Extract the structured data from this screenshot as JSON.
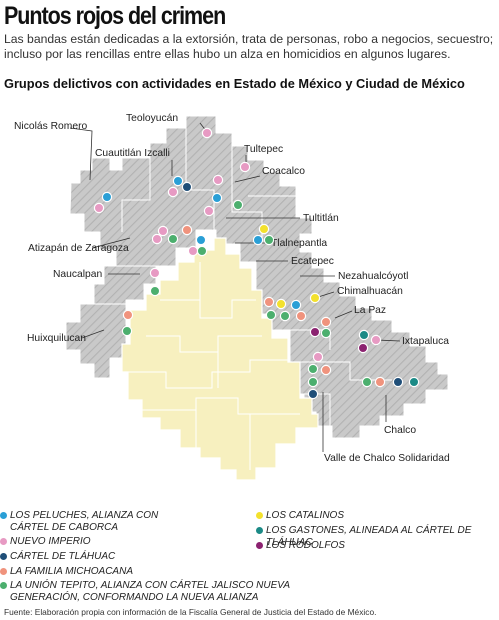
{
  "title": "Puntos rojos del crimen",
  "intro": "Las bandas están dedicadas a la extorsión, trata de personas, robo a negocios, secuestro; incluso por las rencillas entre ellas hubo un alza en homicidios en algunos lugares.",
  "subtitle": "Grupos delictivos con actividades en Estado de México y Ciudad de México",
  "places": {
    "teoloyucan": "Teoloyucán",
    "nicolas_romero": "Nicolás Romero",
    "cuautitlan_izcalli": "Cuautitlán Izcalli",
    "tultepec": "Tultepec",
    "coacalco": "Coacalco",
    "tultitlan": "Tultitlán",
    "atizapan": "Atizapán de Zaragoza",
    "tlalnepantla": "Tlalnepantla",
    "ecatepec": "Ecatepec",
    "naucalpan": "Naucalpan",
    "nezahualcoyotl": "Nezahualcóyotl",
    "chimalhuacan": "Chimalhuacán",
    "la_paz": "La Paz",
    "huixquilucan": "Huixquilucan",
    "ixtapaluca": "Ixtapaluca",
    "chalco": "Chalco",
    "valle_chalco": "Valle de Chalco Solidaridad"
  },
  "legend": [
    {
      "label": "LOS PELUCHES, ALIANZA CON CÁRTEL DE CABORCA",
      "color": "#2a9fd6"
    },
    {
      "label": "NUEVO IMPERIO",
      "color": "#e79ac3"
    },
    {
      "label": "CÁRTEL DE TLÁHUAC",
      "color": "#1f4e78"
    },
    {
      "label": "LA FAMILIA MICHOACANA",
      "color": "#f0937d"
    },
    {
      "label": "LA UNIÓN TEPITO, ALIANZA CON CÁRTEL JALISCO NUEVA GENERACIÓN, CONFORMANDO LA NUEVA ALIANZA",
      "color": "#4caf6e"
    },
    {
      "label": "LOS CATALINOS",
      "color": "#f3e12d"
    },
    {
      "label": "LOS GASTONES, ALINEADA AL CÁRTEL DE TLÁHUAC",
      "color": "#1b8a86"
    },
    {
      "label": "LOS RODOLFOS",
      "color": "#8b2270"
    }
  ],
  "source": "Fuente: Elaboración propia con información de la Fiscalía General de Justicia del Estado de México."
}
